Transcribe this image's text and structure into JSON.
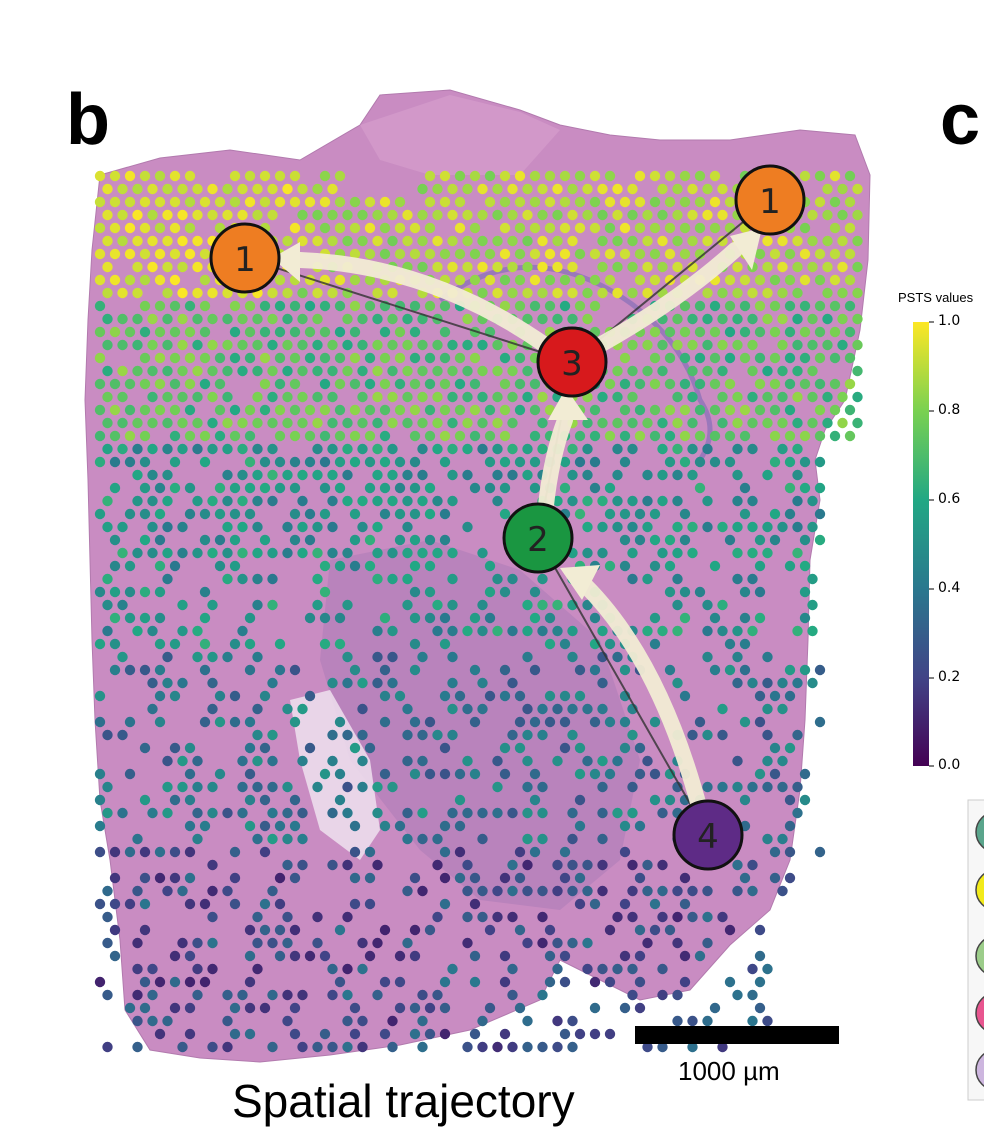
{
  "panels": {
    "left_letter": "b",
    "right_letter": "c"
  },
  "caption": "Spatial trajectory",
  "scale_bar": {
    "label": "1000 µm"
  },
  "colorbar": {
    "title": "PSTS values",
    "ticks": [
      "1.0",
      "0.8",
      "0.6",
      "0.4",
      "0.2",
      "0.0"
    ],
    "colors": [
      "#fde725",
      "#7ad151",
      "#22a884",
      "#2a788e",
      "#414487",
      "#440154"
    ]
  },
  "nodes": [
    {
      "id": "node-1-left",
      "label": "1",
      "color": "#ee7d22"
    },
    {
      "id": "node-1-right",
      "label": "1",
      "color": "#ee7d22"
    },
    {
      "id": "node-3",
      "label": "3",
      "color": "#d7191c"
    },
    {
      "id": "node-2",
      "label": "2",
      "color": "#1a9641"
    },
    {
      "id": "node-4",
      "label": "4",
      "color": "#5e2b86"
    }
  ],
  "legend_swatch_colors": [
    "#5aa58c",
    "#f2ea1a",
    "#9ccd8a",
    "#e8558f",
    "#cdb6df"
  ]
}
